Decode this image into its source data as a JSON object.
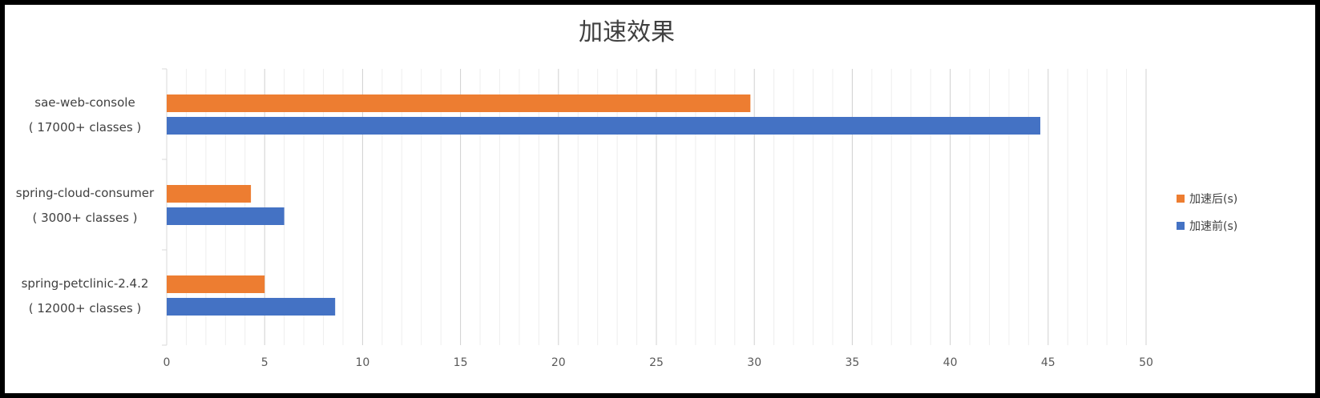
{
  "chart_data": {
    "type": "bar",
    "orientation": "horizontal",
    "title": "加速效果",
    "categories": [
      {
        "name": "sae-web-console",
        "sub": "( 17000+ classes )"
      },
      {
        "name": "spring-cloud-consumer",
        "sub": "( 3000+ classes )"
      },
      {
        "name": "spring-petclinic-2.4.2",
        "sub": "( 12000+ classes )"
      }
    ],
    "series": [
      {
        "name": "加速后(s)",
        "color": "#ED7D31",
        "values": [
          29.8,
          4.3,
          5.0
        ]
      },
      {
        "name": "加速前(s)",
        "color": "#4472C4",
        "values": [
          44.6,
          6.0,
          8.6
        ]
      }
    ],
    "xlim": [
      0,
      50
    ],
    "xticks": [
      0,
      5,
      10,
      15,
      20,
      25,
      30,
      35,
      40,
      45,
      50
    ],
    "grid": true,
    "legend": "right",
    "xlabel": "",
    "ylabel": ""
  }
}
